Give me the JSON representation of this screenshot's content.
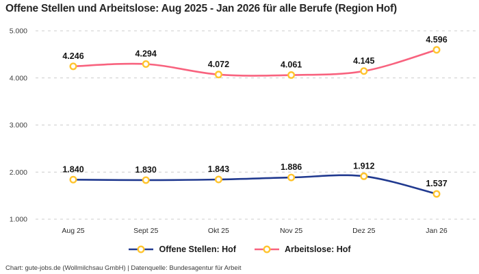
{
  "chart_data": {
    "type": "line",
    "title": "Offene Stellen und Arbeitslose: Aug 2025 - Jan 2026 für alle Berufe (Region Hof)",
    "categories": [
      "Aug 25",
      "Sept 25",
      "Okt 25",
      "Nov 25",
      "Dez 25",
      "Jan 26"
    ],
    "series": [
      {
        "name": "Offene Stellen: Hof",
        "color": "#20398F",
        "values": [
          1840,
          1830,
          1843,
          1886,
          1912,
          1537
        ],
        "labels": [
          "1.840",
          "1.830",
          "1.843",
          "1.886",
          "1.912",
          "1.537"
        ]
      },
      {
        "name": "Arbeitslose: Hof",
        "color": "#F8627E",
        "values": [
          4246,
          4294,
          4072,
          4061,
          4145,
          4596
        ],
        "labels": [
          "4.246",
          "4.294",
          "4.072",
          "4.061",
          "4.145",
          "4.596"
        ]
      }
    ],
    "yticks": [
      {
        "value": 1000,
        "label": "1.000"
      },
      {
        "value": 2000,
        "label": "2.000"
      },
      {
        "value": 3000,
        "label": "3.000"
      },
      {
        "value": 4000,
        "label": "4.000"
      },
      {
        "value": 5000,
        "label": "5.000"
      }
    ],
    "ylim": [
      1000,
      5000
    ],
    "xlabel": "",
    "ylabel": "",
    "grid": "horizontal-dashed",
    "grid_color": "#CCCCCC",
    "marker_color": "#FFC42E",
    "legend_position": "bottom"
  },
  "footer": {
    "text": "Chart: gute-jobs.de (Wollmilchsau GmbH) | Datenquelle: Bundesagentur für Arbeit"
  }
}
